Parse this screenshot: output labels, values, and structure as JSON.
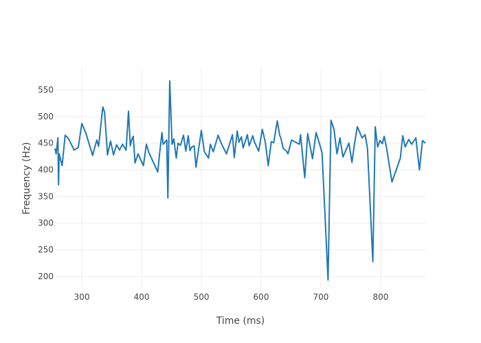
{
  "chart_data": {
    "type": "line",
    "title": "",
    "xlabel": "Time (ms)",
    "ylabel": "Frequency (Hz)",
    "xlim": [
      255,
      876
    ],
    "ylim": [
      178,
      590
    ],
    "x_ticks": [
      300,
      400,
      500,
      600,
      700,
      800
    ],
    "y_ticks": [
      200,
      250,
      300,
      350,
      400,
      450,
      500,
      550
    ],
    "grid": true,
    "legend": "none",
    "line_color": "#1f77b4",
    "grid_color": "#eeeeee",
    "series": [
      {
        "x": [
          255,
          257,
          260,
          261,
          262,
          267,
          272,
          278,
          287,
          294,
          300,
          307,
          318,
          320,
          325,
          328,
          335,
          338,
          343,
          348,
          353,
          358,
          363,
          368,
          374,
          378,
          381,
          383,
          386,
          389,
          394,
          403,
          408,
          412,
          427,
          430,
          434,
          436,
          442,
          444,
          447,
          451,
          454,
          458,
          461,
          465,
          470,
          474,
          478,
          481,
          484,
          488,
          491,
          495,
          500,
          505,
          512,
          515,
          520,
          528,
          534,
          542,
          552,
          555,
          560,
          563,
          567,
          570,
          577,
          580,
          586,
          589,
          596,
          602,
          607,
          612,
          617,
          621,
          627,
          631,
          633,
          637,
          642,
          645,
          651,
          664,
          666,
          673,
          678,
          681,
          686,
          692,
          698,
          702,
          712,
          717,
          722,
          727,
          732,
          737,
          747,
          752,
          756,
          761,
          769,
          774,
          778,
          787,
          791,
          795,
          799,
          803,
          806,
          810,
          819,
          833,
          837,
          841,
          847,
          852,
          859,
          865,
          870,
          875
        ],
        "y": [
          440,
          430,
          460,
          372,
          430,
          408,
          465,
          458,
          437,
          442,
          487,
          468,
          427,
          436,
          456,
          444,
          518,
          508,
          428,
          454,
          428,
          447,
          437,
          448,
          437,
          510,
          445,
          455,
          463,
          413,
          430,
          408,
          448,
          433,
          396,
          430,
          470,
          448,
          456,
          347,
          567,
          448,
          458,
          422,
          450,
          446,
          465,
          435,
          464,
          436,
          443,
          445,
          405,
          436,
          474,
          434,
          422,
          448,
          434,
          465,
          448,
          430,
          466,
          423,
          473,
          452,
          462,
          441,
          466,
          445,
          464,
          452,
          435,
          476,
          452,
          408,
          453,
          451,
          492,
          465,
          460,
          440,
          436,
          430,
          456,
          448,
          466,
          385,
          468,
          450,
          421,
          470,
          448,
          432,
          193,
          493,
          476,
          430,
          460,
          424,
          450,
          414,
          447,
          481,
          460,
          466,
          440,
          228,
          481,
          443,
          455,
          449,
          463,
          441,
          377,
          422,
          464,
          443,
          457,
          448,
          460,
          400,
          455,
          450
        ]
      }
    ]
  }
}
